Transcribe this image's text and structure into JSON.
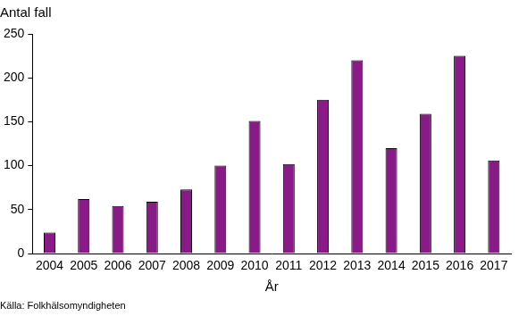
{
  "chart_data": {
    "type": "bar",
    "ylabel": "Antal fall",
    "xlabel": "År",
    "source": "Källa: Folkhälsomyndigheten",
    "categories": [
      "2004",
      "2005",
      "2006",
      "2007",
      "2008",
      "2009",
      "2010",
      "2011",
      "2012",
      "2013",
      "2014",
      "2015",
      "2016",
      "2017"
    ],
    "values": [
      24,
      62,
      54,
      59,
      73,
      100,
      151,
      102,
      175,
      220,
      120,
      159,
      225,
      106
    ],
    "color": "#8b1a89",
    "ylim": [
      0,
      250
    ],
    "yticks": [
      0,
      50,
      100,
      150,
      200,
      250
    ],
    "grid": false
  }
}
